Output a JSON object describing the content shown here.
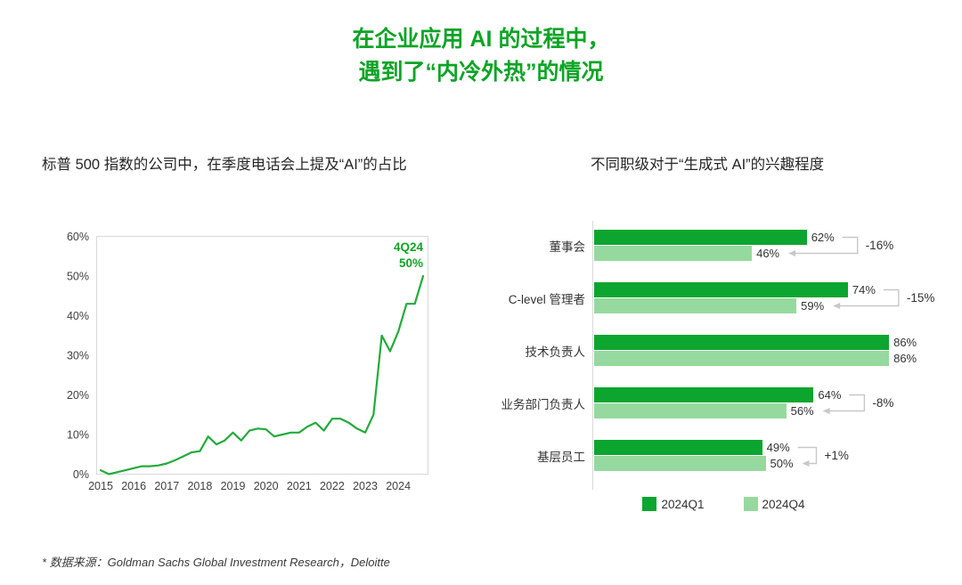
{
  "slide": {
    "title_line1": "在企业应用 AI 的过程中，",
    "title_line2": "遇到了“内冷外热”的情况",
    "footnote": "* 数据来源：Goldman Sachs Global Investment Research，Deloitte"
  },
  "colors": {
    "title_green": "#0da426",
    "line_green": "#23ab3a",
    "bar_dark": "#0ca52f",
    "bar_light": "#96d99e",
    "plot_border": "#d9d9d9",
    "bracket_gray": "#c8c8c8",
    "text_dark": "#333333"
  },
  "chart_data": [
    {
      "type": "line",
      "title": "标普 500 指数的公司中，在季度电话会上提及“AI”的占比",
      "x_period": "quarterly, 1Q2015 - 4Q2024",
      "x_tick_labels": [
        "2015",
        "2016",
        "2017",
        "2018",
        "2019",
        "2020",
        "2021",
        "2022",
        "2023",
        "2024"
      ],
      "ylim": [
        0,
        60
      ],
      "y_tick_values": [
        0,
        10,
        20,
        30,
        40,
        50,
        60
      ],
      "y_tick_labels": [
        "0%",
        "10%",
        "20%",
        "30%",
        "40%",
        "50%",
        "60%"
      ],
      "grid": false,
      "values": [
        1,
        0,
        0.5,
        1,
        1.5,
        2,
        2,
        2.2,
        2.7,
        3.5,
        4.5,
        5.5,
        5.8,
        9.5,
        7.5,
        8.5,
        10.5,
        8.5,
        11,
        11.5,
        11.3,
        9.5,
        10,
        10.5,
        10.5,
        12,
        13,
        11,
        14,
        14,
        13,
        11.5,
        10.5,
        15,
        35,
        31,
        36,
        43,
        43,
        50
      ],
      "annotation": {
        "label": "4Q24",
        "value": "50%"
      }
    },
    {
      "type": "bar",
      "orientation": "horizontal",
      "title": "不同职级对于“生成式 AI”的兴趣程度",
      "categories": [
        "董事会",
        "C-level 管理者",
        "技术负责人",
        "业务部门负责人",
        "基层员工"
      ],
      "series": [
        {
          "name": "2024Q1",
          "values": [
            62,
            74,
            86,
            64,
            49
          ]
        },
        {
          "name": "2024Q4",
          "values": [
            46,
            59,
            86,
            56,
            50
          ]
        }
      ],
      "value_labels": [
        [
          "62%",
          "46%"
        ],
        [
          "74%",
          "59%"
        ],
        [
          "86%",
          "86%"
        ],
        [
          "64%",
          "56%"
        ],
        [
          "49%",
          "50%"
        ]
      ],
      "deltas": [
        "-16%",
        "-15%",
        null,
        "-8%",
        "+1%"
      ],
      "xlim": [
        0,
        100
      ],
      "legend_position": "bottom-center"
    }
  ]
}
